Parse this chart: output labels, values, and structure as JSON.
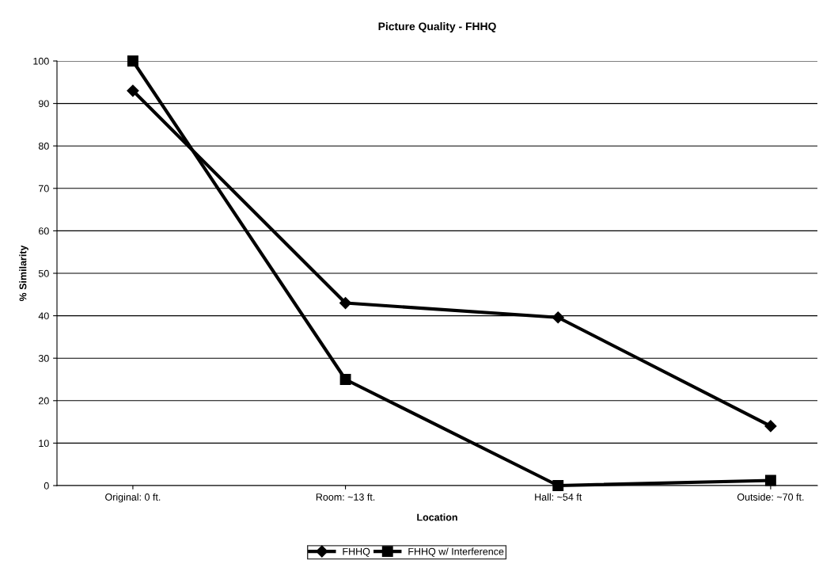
{
  "chart_data": {
    "type": "line",
    "title": "Picture Quality - FHHQ",
    "xlabel": "Location",
    "ylabel": "% Similarity",
    "categories": [
      "Original: 0 ft.",
      "Room: ~13 ft.",
      "Hall: ~54 ft",
      "Outside: ~70 ft."
    ],
    "series": [
      {
        "name": "FHHQ",
        "color": "#000000",
        "marker": "diamond",
        "values": [
          93,
          43,
          39.6,
          14
        ]
      },
      {
        "name": "FHHQ w/ Interference",
        "color": "#000000",
        "marker": "square",
        "values": [
          100,
          25,
          0,
          1.2
        ]
      }
    ],
    "ylim": [
      0,
      100
    ],
    "yticks": [
      0,
      10,
      20,
      30,
      40,
      50,
      60,
      70,
      80,
      90,
      100
    ],
    "grid": "y",
    "legend": "bottom",
    "line_style": "solid"
  }
}
